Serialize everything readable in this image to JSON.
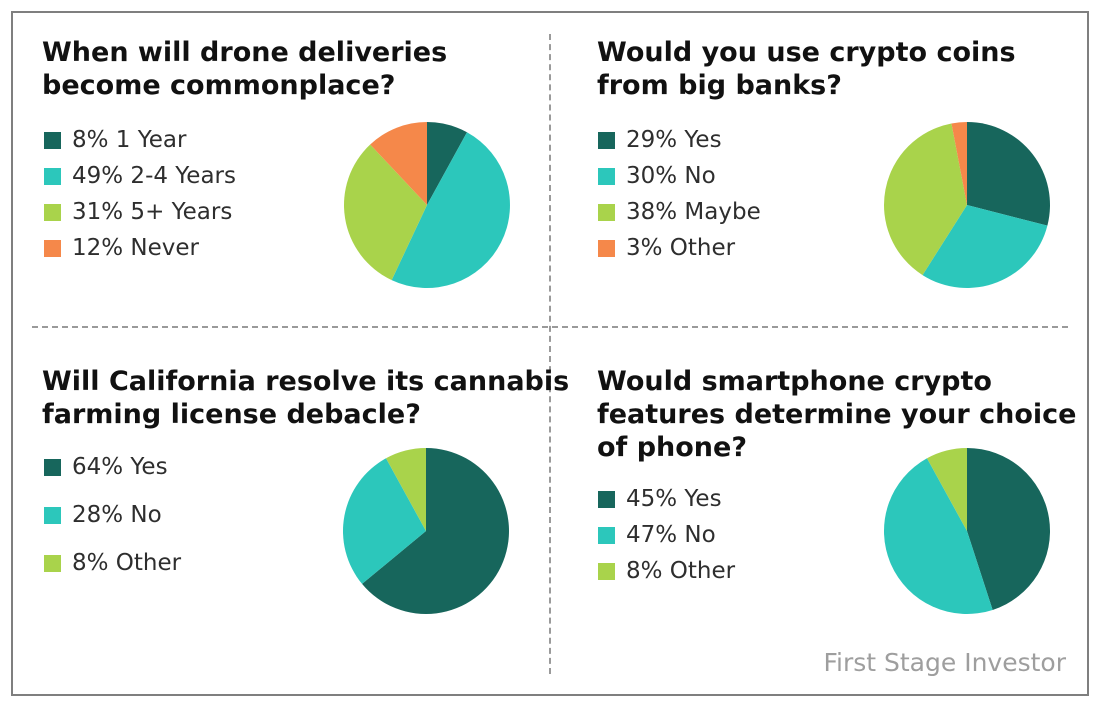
{
  "colors": {
    "dark_teal": "#17665c",
    "teal": "#2cc7bb",
    "lime": "#a9d34b",
    "orange": "#f5884a"
  },
  "footer": {
    "credit": "First Stage Investor"
  },
  "chart_data": [
    {
      "type": "pie",
      "title_lines": [
        "When will drone deliveries",
        "become commonplace?"
      ],
      "slices": [
        {
          "label": "8% 1 Year",
          "value": 8,
          "color": "#17665c"
        },
        {
          "label": "49% 2-4 Years",
          "value": 49,
          "color": "#2cc7bb"
        },
        {
          "label": "31% 5+ Years",
          "value": 31,
          "color": "#a9d34b"
        },
        {
          "label": "12% Never",
          "value": 12,
          "color": "#f5884a"
        }
      ]
    },
    {
      "type": "pie",
      "title_lines": [
        "Would you use crypto coins",
        "from big banks?"
      ],
      "slices": [
        {
          "label": "29% Yes",
          "value": 29,
          "color": "#17665c"
        },
        {
          "label": "30% No",
          "value": 30,
          "color": "#2cc7bb"
        },
        {
          "label": "38% Maybe",
          "value": 38,
          "color": "#a9d34b"
        },
        {
          "label": "3% Other",
          "value": 3,
          "color": "#f5884a"
        }
      ]
    },
    {
      "type": "pie",
      "title_lines": [
        "Will California resolve its cannabis",
        "farming license debacle?"
      ],
      "slices": [
        {
          "label": "64% Yes",
          "value": 64,
          "color": "#17665c"
        },
        {
          "label": "28% No",
          "value": 28,
          "color": "#2cc7bb"
        },
        {
          "label": "8% Other",
          "value": 8,
          "color": "#a9d34b"
        }
      ]
    },
    {
      "type": "pie",
      "title_lines": [
        "Would smartphone crypto",
        "features determine your choice",
        "of phone?"
      ],
      "slices": [
        {
          "label": "45% Yes",
          "value": 45,
          "color": "#17665c"
        },
        {
          "label": "47% No",
          "value": 47,
          "color": "#2cc7bb"
        },
        {
          "label": "8% Other",
          "value": 8,
          "color": "#a9d34b"
        }
      ]
    }
  ]
}
